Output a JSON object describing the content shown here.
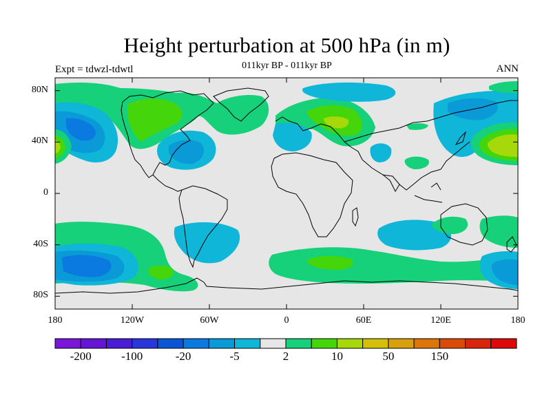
{
  "title": "Height perturbation at 500 hPa (in m)",
  "subtitle": "011kyr BP - 011kyr BP",
  "left_label": "Expt = tdwzl-tdwtl",
  "right_label": "ANN",
  "y_ticks": [
    {
      "label": "80N",
      "lat": 80
    },
    {
      "label": "40N",
      "lat": 40
    },
    {
      "label": "0",
      "lat": 0
    },
    {
      "label": "40S",
      "lat": -40
    },
    {
      "label": "80S",
      "lat": -80
    }
  ],
  "x_ticks": [
    {
      "label": "180",
      "lon": -180
    },
    {
      "label": "120W",
      "lon": -120
    },
    {
      "label": "60W",
      "lon": -60
    },
    {
      "label": "0",
      "lon": 0
    },
    {
      "label": "60E",
      "lon": 60
    },
    {
      "label": "120E",
      "lon": 120
    },
    {
      "label": "180",
      "lon": 180
    }
  ],
  "colorbar": {
    "colors": [
      "#7a16d8",
      "#6615d4",
      "#4a1cd6",
      "#2a36dc",
      "#0a54d6",
      "#0a7ae0",
      "#0a9ad8",
      "#0fb6d8",
      "#e6e6e6",
      "#16d07a",
      "#44d60a",
      "#a6d80a",
      "#d4c00a",
      "#d8a00a",
      "#dc760a",
      "#dc4a0a",
      "#d8260a",
      "#dc0a0a"
    ],
    "labels": [
      {
        "text": "-200",
        "boundary": 1
      },
      {
        "text": "-100",
        "boundary": 3
      },
      {
        "text": "-20",
        "boundary": 5
      },
      {
        "text": "-5",
        "boundary": 7
      },
      {
        "text": "2",
        "boundary": 9
      },
      {
        "text": "10",
        "boundary": 11
      },
      {
        "text": "50",
        "boundary": 13
      },
      {
        "text": "150",
        "boundary": 15
      }
    ]
  },
  "background_color": "#e6e6e6"
}
